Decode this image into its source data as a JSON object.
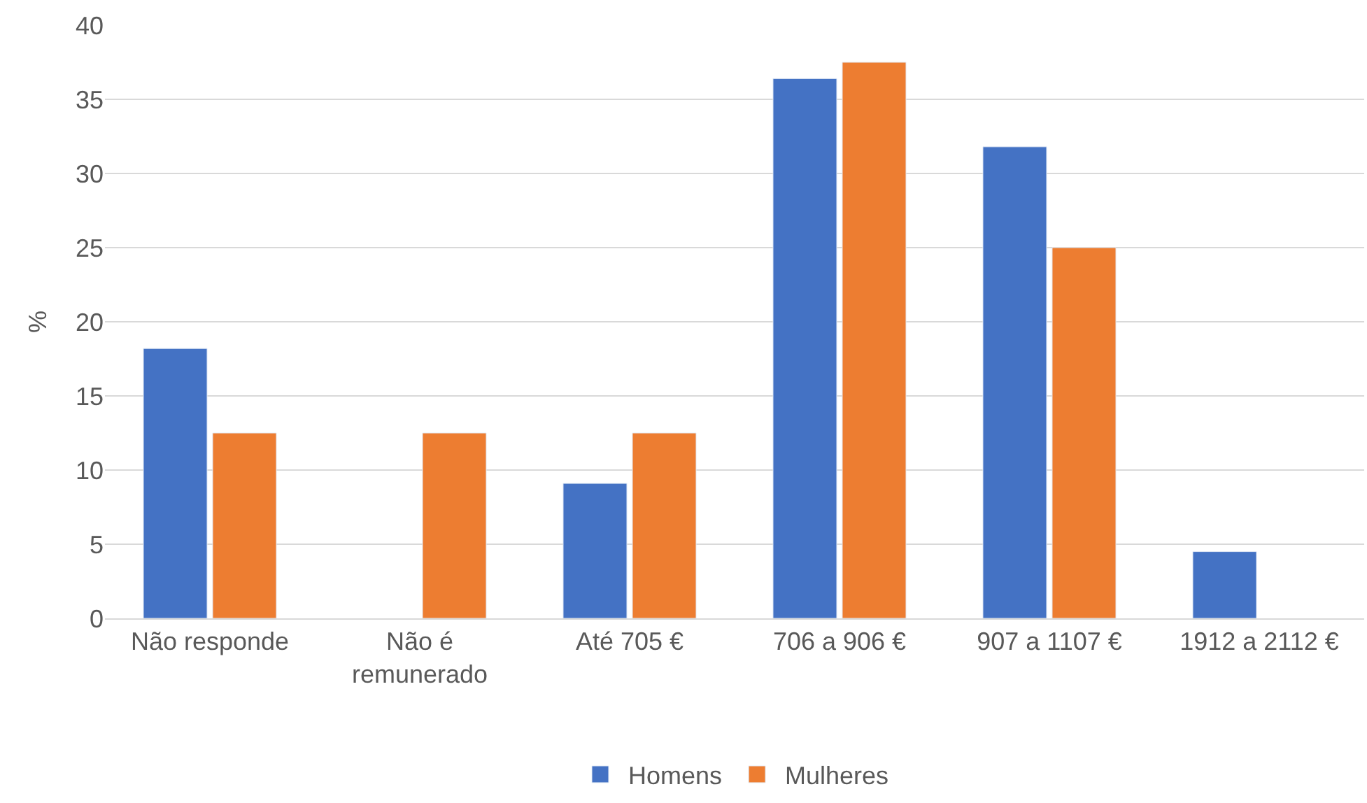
{
  "chart_data": {
    "type": "bar",
    "ylabel": "%",
    "categories": [
      "Não responde",
      "Não é remunerado",
      "Até 705 €",
      "706 a 906 €",
      "907 a 1107 €",
      "1912 a 2112 €"
    ],
    "series": [
      {
        "name": "Homens",
        "color": "#4472c4",
        "values": [
          18.2,
          null,
          9.1,
          36.4,
          31.8,
          4.5
        ]
      },
      {
        "name": "Mulheres",
        "color": "#ed7d31",
        "values": [
          12.5,
          12.5,
          12.5,
          37.5,
          25,
          null
        ]
      }
    ],
    "ylim": [
      0,
      40
    ],
    "yticks": [
      0,
      5,
      10,
      15,
      20,
      25,
      30,
      35,
      40
    ],
    "grid": "y",
    "legend": "bottom"
  }
}
